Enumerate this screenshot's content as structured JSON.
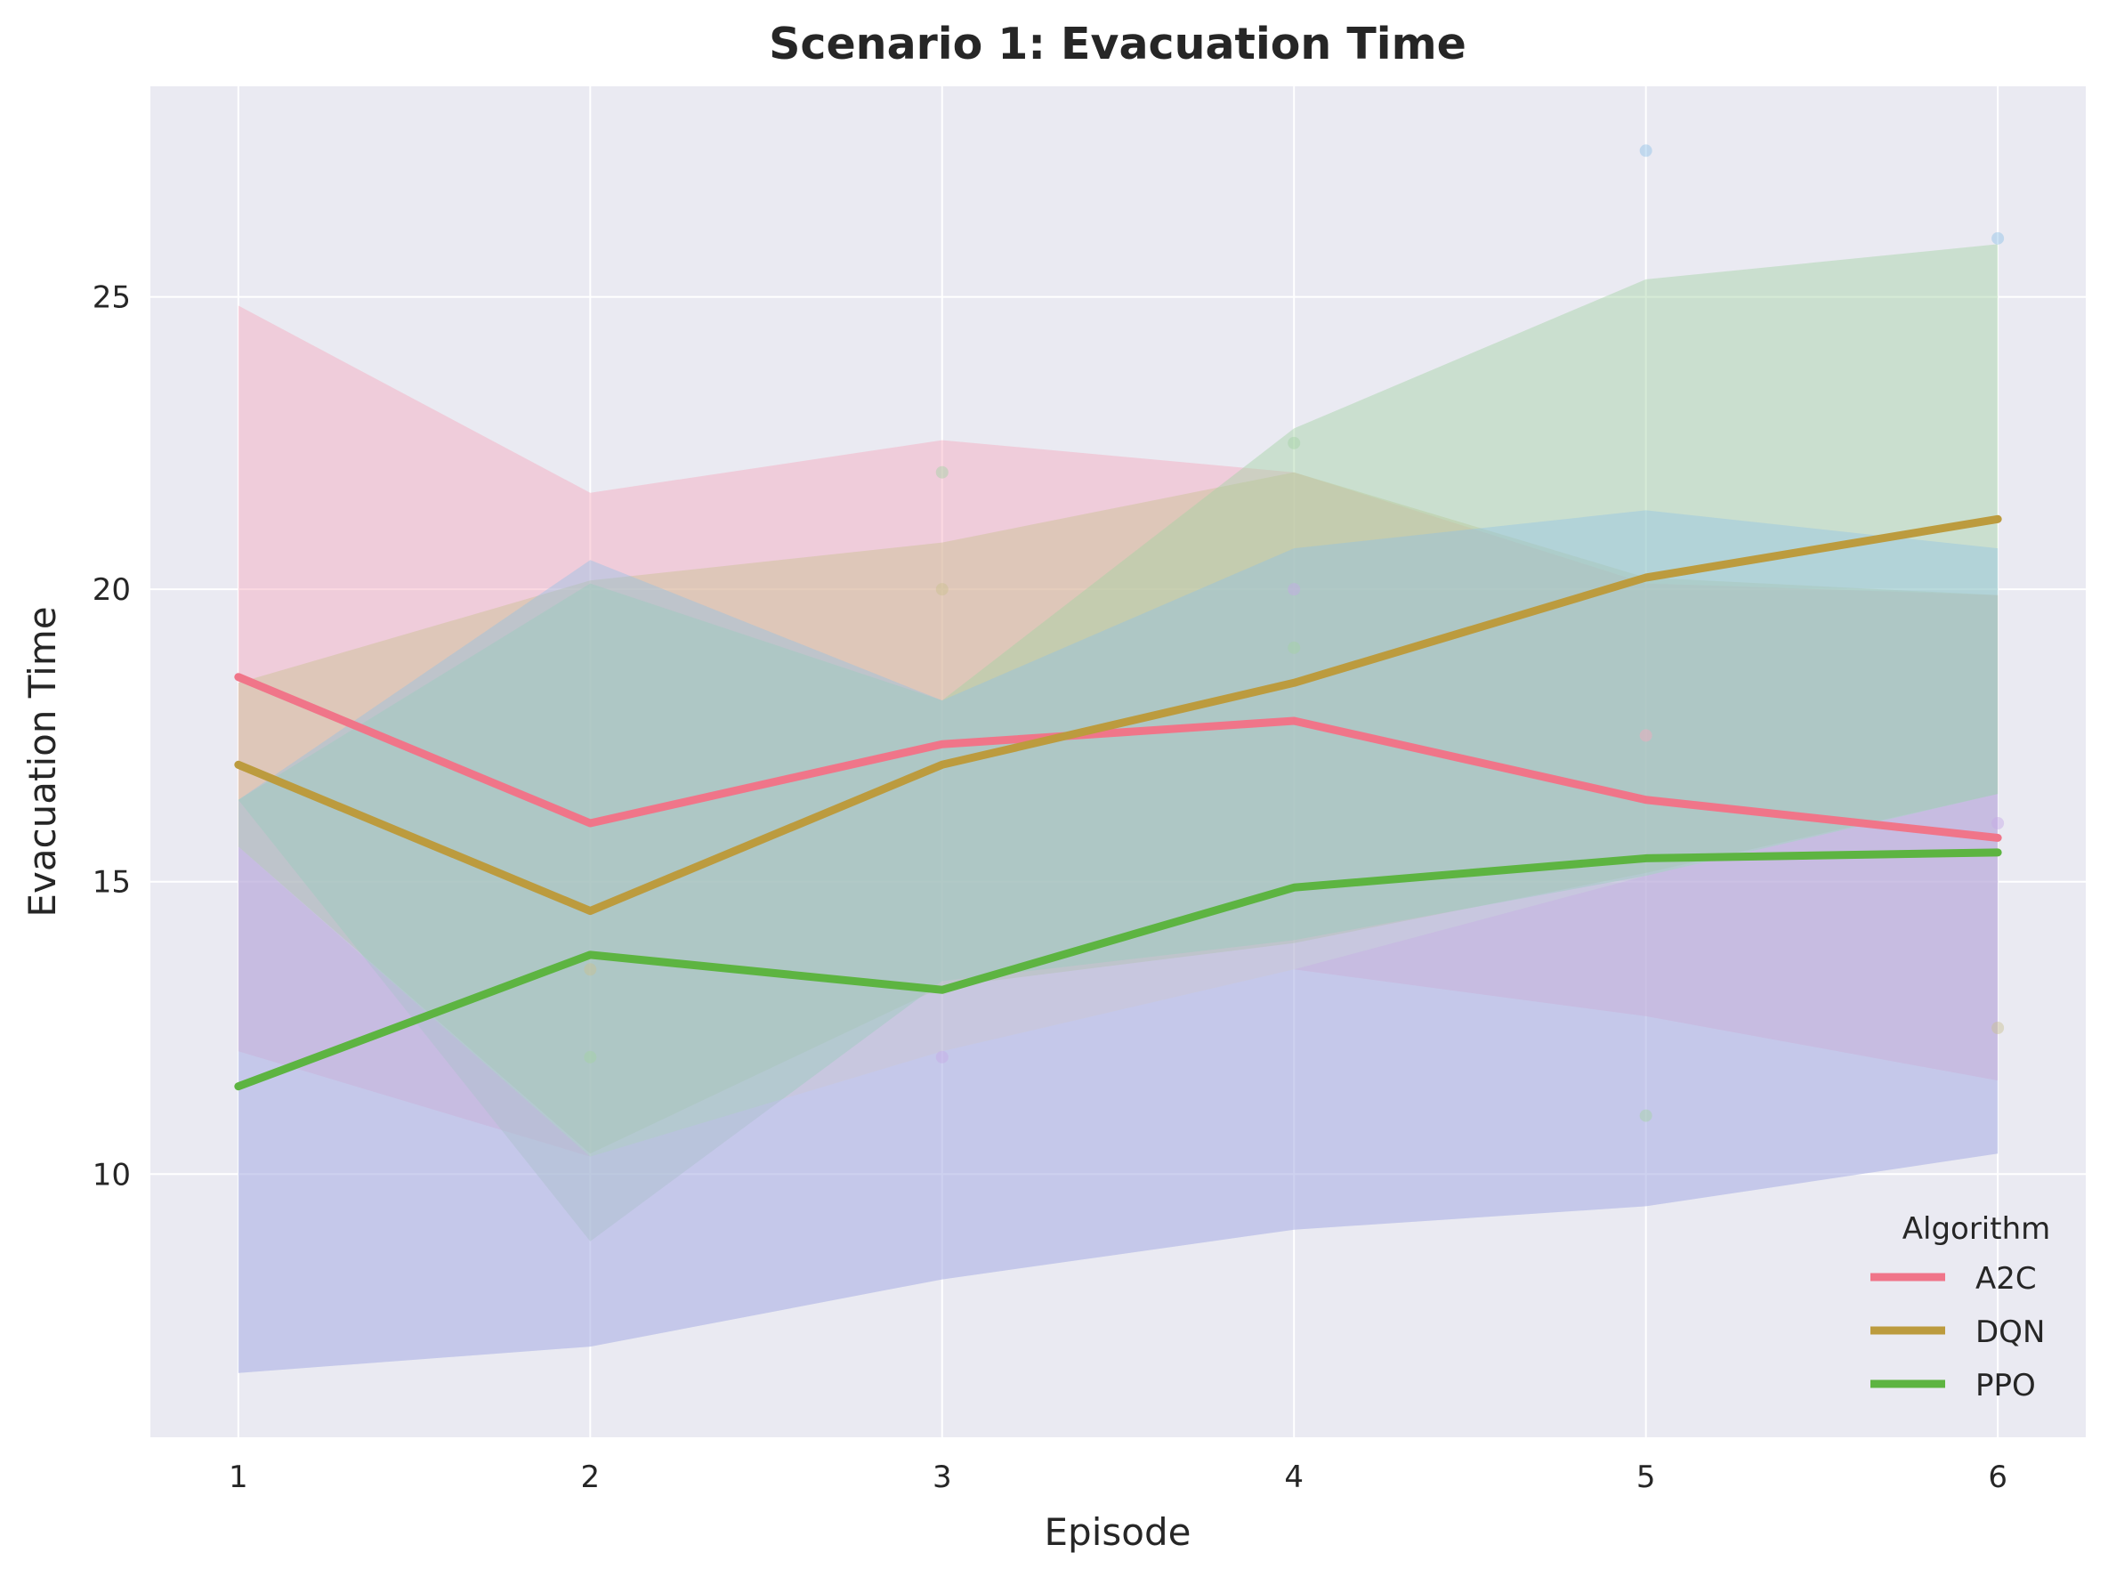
{
  "chart_data": {
    "type": "line",
    "title": "Scenario 1: Evacuation Time",
    "xlabel": "Episode",
    "ylabel": "Evacuation Time",
    "x": [
      1,
      2,
      3,
      4,
      5,
      6
    ],
    "xlim": [
      0.75,
      6.25
    ],
    "ylim": [
      5.5,
      28.6
    ],
    "xticks": [
      "1",
      "2",
      "3",
      "4",
      "5",
      "6"
    ],
    "yticks": [
      10,
      15,
      20,
      25
    ],
    "grid": true,
    "legend": {
      "title": "Algorithm",
      "position": "lower-right"
    },
    "series": [
      {
        "name": "A2C",
        "color": "#f07589",
        "values": [
          18.5,
          16.0,
          17.35,
          17.75,
          16.4,
          15.75
        ]
      },
      {
        "name": "DQN",
        "color": "#bc9b3e",
        "values": [
          17.0,
          14.5,
          17.0,
          18.4,
          20.2,
          21.2
        ]
      },
      {
        "name": "PPO",
        "color": "#5db441",
        "values": [
          11.5,
          13.75,
          13.15,
          14.9,
          15.4,
          15.5
        ]
      }
    ],
    "bands": [
      {
        "color": "#f7a8bd",
        "opacity": 0.45,
        "lower": [
          12.1,
          10.3,
          12.1,
          13.5,
          12.7,
          11.6
        ],
        "upper": [
          24.85,
          21.65,
          22.55,
          22.0,
          20.1,
          19.9
        ]
      },
      {
        "color": "#c9c191",
        "opacity": 0.45,
        "lower": [
          15.6,
          10.35,
          13.2,
          13.95,
          15.15,
          16.5
        ],
        "upper": [
          18.4,
          20.15,
          20.8,
          22.0,
          20.2,
          19.9
        ]
      },
      {
        "color": "#a3d3a3",
        "opacity": 0.45,
        "lower": [
          16.4,
          8.85,
          13.3,
          14.0,
          15.1,
          16.5
        ],
        "upper": [
          16.4,
          20.1,
          18.1,
          22.75,
          25.3,
          25.9
        ]
      },
      {
        "color": "#8fc1e6",
        "opacity": 0.4,
        "lower": [
          6.6,
          7.05,
          8.2,
          9.05,
          9.45,
          10.35
        ],
        "upper": [
          16.4,
          20.5,
          18.1,
          20.7,
          21.35,
          20.7
        ]
      },
      {
        "color": "#c6a9e6",
        "opacity": 0.35,
        "lower": [
          6.6,
          7.05,
          8.2,
          9.05,
          9.45,
          10.35
        ],
        "upper": [
          15.6,
          10.3,
          12.1,
          13.5,
          15.1,
          16.5
        ]
      }
    ],
    "points": [
      {
        "x": 2,
        "y": 13.5,
        "color": "#c9c191"
      },
      {
        "x": 2,
        "y": 12.0,
        "color": "#a3d3a3"
      },
      {
        "x": 3,
        "y": 22.0,
        "color": "#a3d3a3"
      },
      {
        "x": 3,
        "y": 20.0,
        "color": "#c9c191"
      },
      {
        "x": 3,
        "y": 12.0,
        "color": "#c6a9e6"
      },
      {
        "x": 4,
        "y": 22.5,
        "color": "#a3d3a3"
      },
      {
        "x": 4,
        "y": 20.0,
        "color": "#c6a9e6"
      },
      {
        "x": 4,
        "y": 19.0,
        "color": "#a3d3a3"
      },
      {
        "x": 5,
        "y": 27.5,
        "color": "#8fc1e6"
      },
      {
        "x": 5,
        "y": 17.5,
        "color": "#f7a8bd"
      },
      {
        "x": 5,
        "y": 11.0,
        "color": "#a3d3a3"
      },
      {
        "x": 6,
        "y": 26.0,
        "color": "#8fc1e6"
      },
      {
        "x": 6,
        "y": 16.0,
        "color": "#c6a9e6"
      },
      {
        "x": 6,
        "y": 12.5,
        "color": "#c9c191"
      }
    ],
    "colors": {
      "plot_bg": "#eaeaf2",
      "grid": "#ffffff"
    }
  }
}
